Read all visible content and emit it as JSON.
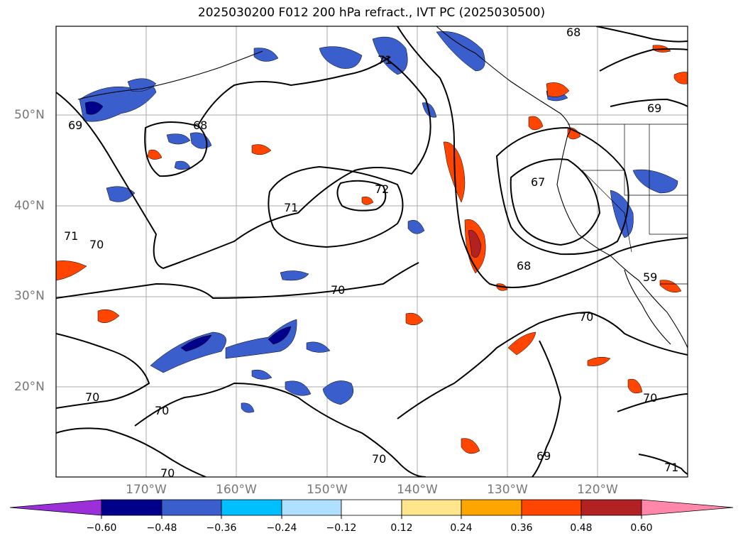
{
  "title": "2025030200 F012 200 hPa refract., IVT PC (2025030500)",
  "lat_labels": [
    "50°N",
    "40°N",
    "30°N",
    "20°N"
  ],
  "lon_labels": [
    "170°W",
    "160°W",
    "150°W",
    "140°W",
    "130°W",
    "120°W"
  ],
  "contour_labels": [
    "68",
    "71",
    "69",
    "68",
    "67",
    "72",
    "71",
    "69",
    "71",
    "70",
    "68",
    "59",
    "70",
    "70",
    "70",
    "70",
    "70",
    "70",
    "69",
    "71",
    "70"
  ],
  "colorbar": {
    "tick_labels": [
      "−0.60",
      "−0.48",
      "−0.36",
      "−0.24",
      "−0.12",
      "0.12",
      "0.24",
      "0.36",
      "0.48",
      "0.60"
    ],
    "colors": [
      "#9b30d9",
      "#00008b",
      "#3a5fcd",
      "#00bfff",
      "#b0e0ff",
      "#ffffff",
      "#ffe68c",
      "#ffa500",
      "#ff4500",
      "#b22222",
      "#ff88aa"
    ]
  },
  "colors": {
    "contour": "#000000",
    "grid": "#aaaaaa",
    "axis_label": "#777777"
  }
}
